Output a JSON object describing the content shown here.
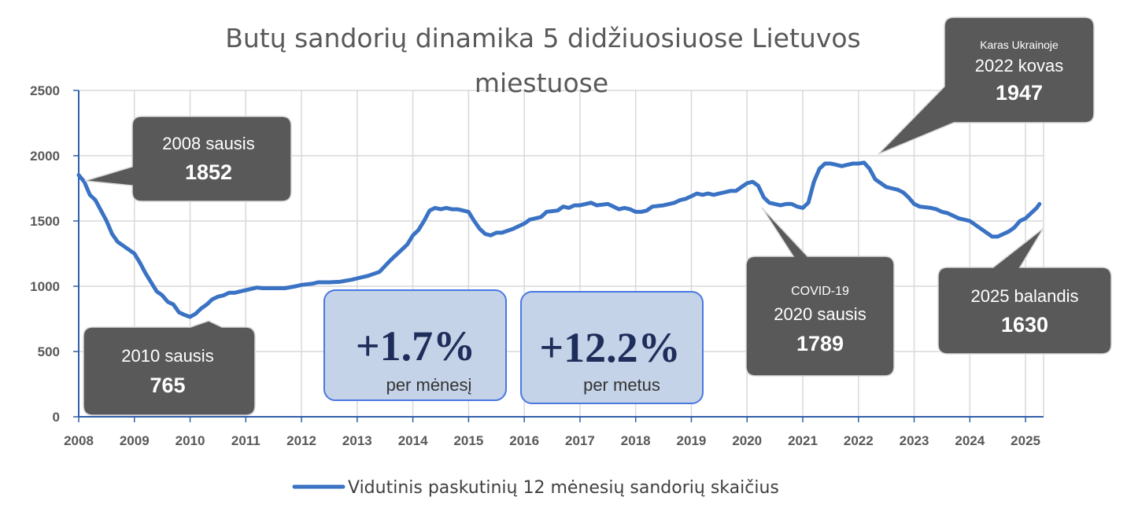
{
  "chart_data": {
    "type": "line",
    "title_line1": "Butų sandorių dinamika 5 didžiuosiuose  Lietuvos",
    "title_line2": "miestuose",
    "xlabel": "",
    "ylabel": "",
    "x_range": [
      2008,
      2025.3
    ],
    "ylim": [
      0,
      2500
    ],
    "y_ticks": [
      "0",
      "500",
      "1000",
      "1500",
      "2000",
      "2500"
    ],
    "x_ticks": [
      "2008",
      "2009",
      "2010",
      "2011",
      "2012",
      "2013",
      "2014",
      "2015",
      "2016",
      "2017",
      "2018",
      "2019",
      "2020",
      "2021",
      "2022",
      "2023",
      "2024",
      "2025"
    ],
    "grid": true,
    "legend_position": "bottom",
    "series": [
      {
        "name": "Vidutinis paskutinių 12 mėnesių sandorių skaičius",
        "color": "#3a72c4",
        "points": [
          [
            2008.0,
            1852
          ],
          [
            2008.1,
            1800
          ],
          [
            2008.2,
            1700
          ],
          [
            2008.3,
            1660
          ],
          [
            2008.4,
            1580
          ],
          [
            2008.5,
            1500
          ],
          [
            2008.6,
            1400
          ],
          [
            2008.7,
            1340
          ],
          [
            2008.8,
            1310
          ],
          [
            2008.9,
            1280
          ],
          [
            2009.0,
            1250
          ],
          [
            2009.1,
            1180
          ],
          [
            2009.2,
            1100
          ],
          [
            2009.3,
            1030
          ],
          [
            2009.4,
            960
          ],
          [
            2009.5,
            930
          ],
          [
            2009.6,
            880
          ],
          [
            2009.7,
            860
          ],
          [
            2009.8,
            800
          ],
          [
            2009.9,
            780
          ],
          [
            2010.0,
            765
          ],
          [
            2010.1,
            790
          ],
          [
            2010.2,
            830
          ],
          [
            2010.3,
            860
          ],
          [
            2010.4,
            900
          ],
          [
            2010.5,
            920
          ],
          [
            2010.6,
            930
          ],
          [
            2010.7,
            950
          ],
          [
            2010.8,
            950
          ],
          [
            2010.9,
            960
          ],
          [
            2011.0,
            970
          ],
          [
            2011.1,
            980
          ],
          [
            2011.2,
            990
          ],
          [
            2011.3,
            985
          ],
          [
            2011.5,
            985
          ],
          [
            2011.7,
            985
          ],
          [
            2011.9,
            1000
          ],
          [
            2012.0,
            1010
          ],
          [
            2012.2,
            1020
          ],
          [
            2012.3,
            1030
          ],
          [
            2012.5,
            1030
          ],
          [
            2012.7,
            1035
          ],
          [
            2012.9,
            1050
          ],
          [
            2013.0,
            1060
          ],
          [
            2013.2,
            1080
          ],
          [
            2013.4,
            1110
          ],
          [
            2013.6,
            1200
          ],
          [
            2013.8,
            1280
          ],
          [
            2013.9,
            1320
          ],
          [
            2014.0,
            1390
          ],
          [
            2014.1,
            1430
          ],
          [
            2014.2,
            1500
          ],
          [
            2014.3,
            1580
          ],
          [
            2014.4,
            1600
          ],
          [
            2014.5,
            1590
          ],
          [
            2014.6,
            1600
          ],
          [
            2014.7,
            1590
          ],
          [
            2014.8,
            1590
          ],
          [
            2014.9,
            1580
          ],
          [
            2015.0,
            1570
          ],
          [
            2015.1,
            1500
          ],
          [
            2015.2,
            1440
          ],
          [
            2015.3,
            1400
          ],
          [
            2015.4,
            1390
          ],
          [
            2015.5,
            1410
          ],
          [
            2015.6,
            1410
          ],
          [
            2015.8,
            1440
          ],
          [
            2016.0,
            1480
          ],
          [
            2016.1,
            1510
          ],
          [
            2016.3,
            1530
          ],
          [
            2016.4,
            1570
          ],
          [
            2016.6,
            1580
          ],
          [
            2016.7,
            1610
          ],
          [
            2016.8,
            1600
          ],
          [
            2016.9,
            1620
          ],
          [
            2017.0,
            1620
          ],
          [
            2017.2,
            1640
          ],
          [
            2017.3,
            1620
          ],
          [
            2017.5,
            1630
          ],
          [
            2017.6,
            1610
          ],
          [
            2017.7,
            1590
          ],
          [
            2017.8,
            1600
          ],
          [
            2017.9,
            1590
          ],
          [
            2018.0,
            1570
          ],
          [
            2018.1,
            1570
          ],
          [
            2018.2,
            1580
          ],
          [
            2018.3,
            1610
          ],
          [
            2018.5,
            1620
          ],
          [
            2018.6,
            1630
          ],
          [
            2018.7,
            1640
          ],
          [
            2018.8,
            1660
          ],
          [
            2018.9,
            1670
          ],
          [
            2019.0,
            1690
          ],
          [
            2019.1,
            1710
          ],
          [
            2019.2,
            1700
          ],
          [
            2019.3,
            1710
          ],
          [
            2019.4,
            1700
          ],
          [
            2019.5,
            1710
          ],
          [
            2019.6,
            1720
          ],
          [
            2019.7,
            1730
          ],
          [
            2019.8,
            1730
          ],
          [
            2019.9,
            1760
          ],
          [
            2020.0,
            1789
          ],
          [
            2020.1,
            1800
          ],
          [
            2020.2,
            1770
          ],
          [
            2020.3,
            1680
          ],
          [
            2020.4,
            1640
          ],
          [
            2020.5,
            1630
          ],
          [
            2020.6,
            1620
          ],
          [
            2020.7,
            1630
          ],
          [
            2020.8,
            1630
          ],
          [
            2020.9,
            1610
          ],
          [
            2021.0,
            1600
          ],
          [
            2021.1,
            1640
          ],
          [
            2021.2,
            1800
          ],
          [
            2021.3,
            1900
          ],
          [
            2021.4,
            1940
          ],
          [
            2021.5,
            1940
          ],
          [
            2021.6,
            1930
          ],
          [
            2021.7,
            1920
          ],
          [
            2021.8,
            1930
          ],
          [
            2021.9,
            1940
          ],
          [
            2022.0,
            1940
          ],
          [
            2022.1,
            1947
          ],
          [
            2022.2,
            1900
          ],
          [
            2022.3,
            1820
          ],
          [
            2022.4,
            1790
          ],
          [
            2022.5,
            1760
          ],
          [
            2022.6,
            1750
          ],
          [
            2022.7,
            1740
          ],
          [
            2022.8,
            1720
          ],
          [
            2022.9,
            1680
          ],
          [
            2023.0,
            1630
          ],
          [
            2023.1,
            1610
          ],
          [
            2023.3,
            1600
          ],
          [
            2023.4,
            1590
          ],
          [
            2023.5,
            1570
          ],
          [
            2023.6,
            1560
          ],
          [
            2023.7,
            1540
          ],
          [
            2023.8,
            1520
          ],
          [
            2023.9,
            1510
          ],
          [
            2024.0,
            1500
          ],
          [
            2024.1,
            1470
          ],
          [
            2024.2,
            1440
          ],
          [
            2024.3,
            1410
          ],
          [
            2024.4,
            1380
          ],
          [
            2024.5,
            1380
          ],
          [
            2024.6,
            1400
          ],
          [
            2024.7,
            1420
          ],
          [
            2024.8,
            1450
          ],
          [
            2024.9,
            1500
          ],
          [
            2025.0,
            1520
          ],
          [
            2025.1,
            1560
          ],
          [
            2025.2,
            1600
          ],
          [
            2025.25,
            1630
          ]
        ]
      }
    ]
  },
  "callouts": [
    {
      "id": "2008",
      "label": "2008 sausis",
      "value": "1852",
      "x": 2008.0,
      "y": 1852
    },
    {
      "id": "2010",
      "label": "2010 sausis",
      "value": "765",
      "x": 2010.0,
      "y": 765
    },
    {
      "id": "2020",
      "small": "COVID-19",
      "label": "2020 sausis",
      "value": "1789",
      "x": 2020.1,
      "y": 1770
    },
    {
      "id": "2022",
      "small": "Karas Ukrainoje",
      "label": "2022 kovas",
      "value": "1947",
      "x": 2022.2,
      "y": 1947
    },
    {
      "id": "2025",
      "label": "2025 balandis",
      "value": "1630",
      "x": 2025.2,
      "y": 1600
    }
  ],
  "stats": [
    {
      "id": "month",
      "value": "+1.7%",
      "label": "per mėnesį"
    },
    {
      "id": "year",
      "value": "+12.2%",
      "label": "per metus"
    }
  ]
}
